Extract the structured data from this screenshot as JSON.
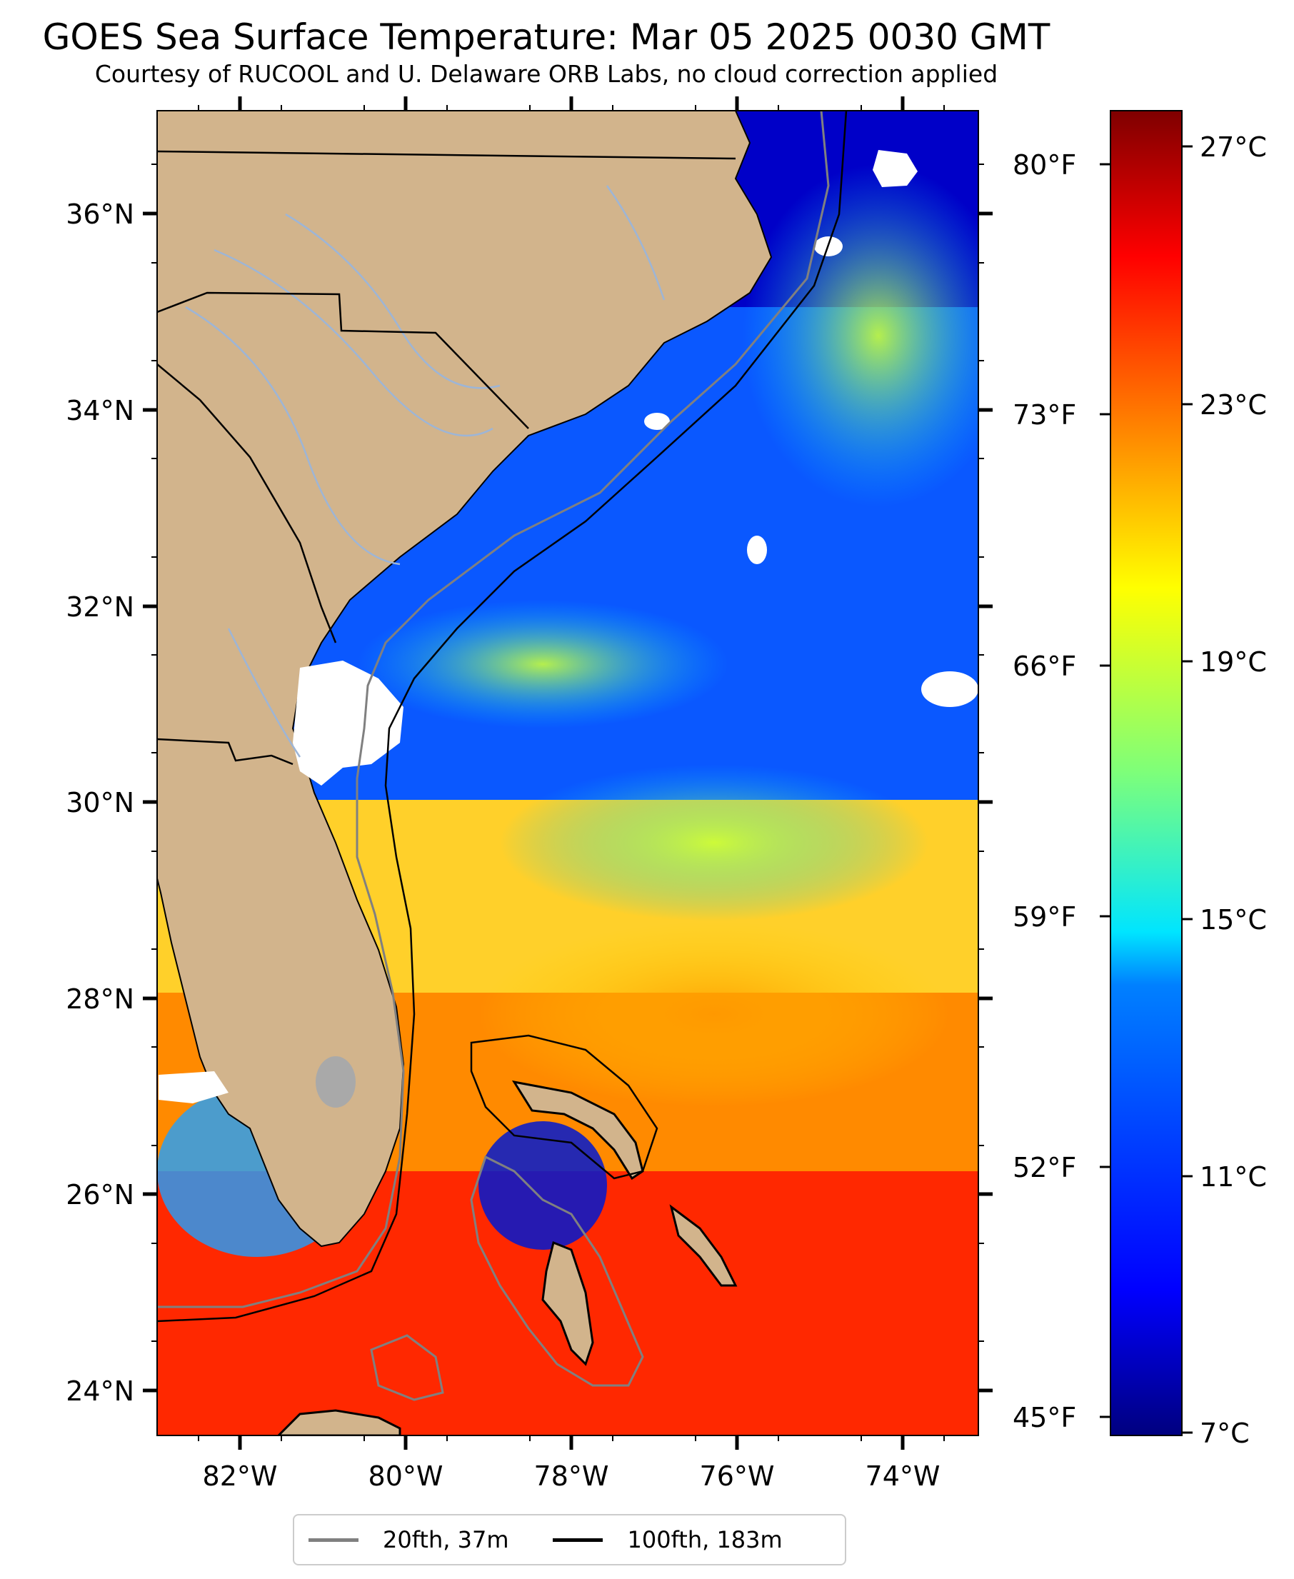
{
  "title": "GOES Sea Surface Temperature: Mar 05 2025 0030 GMT",
  "subtitle": "Courtesy of RUCOOL and U. Delaware ORB Labs, no cloud correction applied",
  "axes": {
    "lat_labels": [
      "36°N",
      "34°N",
      "32°N",
      "30°N",
      "28°N",
      "26°N",
      "24°N"
    ],
    "lon_labels": [
      "82°W",
      "80°W",
      "78°W",
      "76°W",
      "74°W"
    ],
    "fahrenheit_labels": [
      "80°F",
      "73°F",
      "66°F",
      "59°F",
      "52°F",
      "45°F"
    ]
  },
  "colorbar": {
    "labels": [
      "27°C",
      "23°C",
      "19°C",
      "15°C",
      "11°C",
      "7°C"
    ],
    "colors": [
      "#7f0000",
      "#ff0000",
      "#ff7a00",
      "#ffff00",
      "#7dff7a",
      "#00e5ff",
      "#0080ff",
      "#0000ff",
      "#00007f"
    ]
  },
  "map_colors": {
    "land": "#d2b48c",
    "cloud": "#ffffff",
    "lake": "#a9a9a9",
    "river": "#9db5d6",
    "isobath_20": "#808080",
    "isobath_100": "#000000"
  },
  "legend": {
    "items": [
      {
        "label": "20fth, 37m",
        "color": "#808080"
      },
      {
        "label": "100fth, 183m",
        "color": "#000000"
      }
    ]
  }
}
